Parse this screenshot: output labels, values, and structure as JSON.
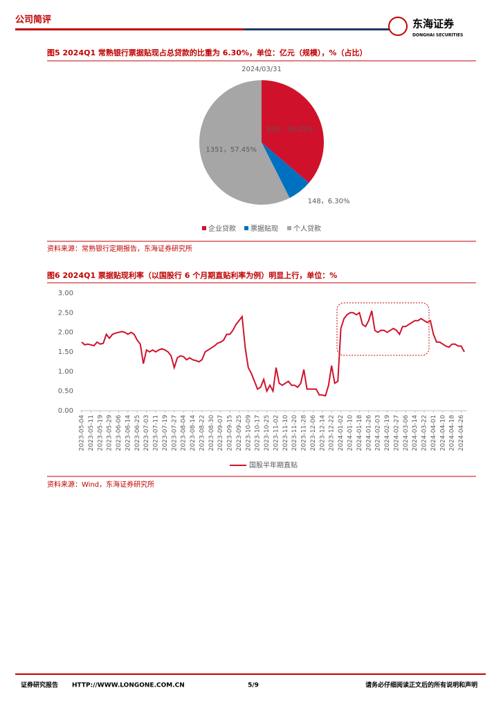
{
  "header": {
    "section": "公司简评",
    "logo_cn": "东海证券",
    "logo_en": "DONGHAI SECURITIES"
  },
  "footer": {
    "left": "证券研究报告",
    "url": "HTTP://WWW.LONGONE.COM.CN",
    "page": "5/9",
    "notice": "请务必仔细阅读正文后的所有说明和声明"
  },
  "chart_data": [
    {
      "type": "pie",
      "title": "图5  2024Q1 常熟银行票据贴现占总贷款的比重为 6.30%，单位：亿元（规模），%（占比）",
      "subtitle": "2024/03/31",
      "categories": [
        "企业贷款",
        "票据贴现",
        "个人贷款"
      ],
      "values": [
        853,
        148,
        1351
      ],
      "value_labels": [
        "853，36.25%",
        "148，6.30%",
        "1351，57.45%"
      ],
      "colors": [
        "#d0112b",
        "#0070c0",
        "#a6a6a6"
      ],
      "source": "资料来源：常熟银行定期报告，东海证券研究所"
    },
    {
      "type": "line",
      "title": "图6  2024Q1 票据贴现利率（以国股行 6 个月期直贴利率为例）明显上行，单位：%",
      "categories": [
        "2023-05-04",
        null,
        null,
        "2023-05-11",
        null,
        null,
        "2023-05-19",
        null,
        null,
        "2023-05-29",
        null,
        null,
        "2023-06-06",
        null,
        null,
        "2023-06-14",
        null,
        null,
        "2023-06-25",
        null,
        null,
        "2023-07-03",
        null,
        null,
        "2023-07-11",
        null,
        null,
        "2023-07-19",
        null,
        null,
        "2023-07-27",
        null,
        null,
        "2023-08-04",
        null,
        null,
        "2023-08-14",
        null,
        null,
        "2023-08-22",
        null,
        null,
        "2023-08-30",
        null,
        null,
        "2023-09-07",
        null,
        null,
        "2023-09-15",
        null,
        null,
        "2023-09-25",
        null,
        null,
        "2023-10-09",
        null,
        null,
        "2023-10-17",
        null,
        null,
        "2023-10-25",
        null,
        null,
        "2023-11-02",
        null,
        null,
        "2023-11-10",
        null,
        null,
        "2023-11-20",
        null,
        null,
        "2023-11-28",
        null,
        null,
        "2023-12-06",
        null,
        null,
        "2023-12-14",
        null,
        null,
        "2023-12-22",
        null,
        null,
        "2024-01-02",
        null,
        null,
        "2024-01-10",
        null,
        null,
        "2024-01-18",
        null,
        null,
        "2024-01-26",
        null,
        null,
        "2024-02-03",
        null,
        null,
        "2024-02-19",
        null,
        null,
        "2024-02-27",
        null,
        null,
        "2024-03-06",
        null,
        null,
        "2024-03-14",
        null,
        null,
        "2024-03-22",
        null,
        null,
        "2024-04-01",
        null,
        null,
        "2024-04-10",
        null,
        null,
        "2024-04-18",
        null,
        null,
        "2024-04-26",
        null
      ],
      "series": [
        {
          "name": "国股半年期直贴",
          "color": "#d0112b",
          "values": [
            1.75,
            1.68,
            1.7,
            1.68,
            1.66,
            1.75,
            1.7,
            1.72,
            1.95,
            1.85,
            1.95,
            1.98,
            2.0,
            2.02,
            2.0,
            1.95,
            2.0,
            1.95,
            1.8,
            1.7,
            1.2,
            1.55,
            1.5,
            1.55,
            1.5,
            1.55,
            1.58,
            1.55,
            1.5,
            1.4,
            1.1,
            1.35,
            1.4,
            1.38,
            1.3,
            1.35,
            1.3,
            1.28,
            1.25,
            1.3,
            1.5,
            1.55,
            1.6,
            1.65,
            1.72,
            1.75,
            1.8,
            1.95,
            1.95,
            2.05,
            2.2,
            2.3,
            2.4,
            1.6,
            1.1,
            0.95,
            0.75,
            0.55,
            0.6,
            0.8,
            0.5,
            0.65,
            0.5,
            1.1,
            0.7,
            0.65,
            0.7,
            0.75,
            0.65,
            0.65,
            0.6,
            0.7,
            1.05,
            0.55,
            0.55,
            0.55,
            0.55,
            0.4,
            0.4,
            0.38,
            0.65,
            1.15,
            0.7,
            0.75,
            2.1,
            2.35,
            2.45,
            2.5,
            2.5,
            2.45,
            2.5,
            2.2,
            2.15,
            2.3,
            2.55,
            2.05,
            2.0,
            2.05,
            2.05,
            2.0,
            2.05,
            2.1,
            2.05,
            1.95,
            2.15,
            2.15,
            2.2,
            2.25,
            2.3,
            2.3,
            2.35,
            2.3,
            2.25,
            2.3,
            1.95,
            1.75,
            1.75,
            1.7,
            1.65,
            1.62,
            1.7,
            1.7,
            1.65,
            1.65,
            1.5
          ]
        }
      ],
      "ylim": [
        0,
        3
      ],
      "yticks": [
        {
          "value": 0,
          "label": "0.00"
        },
        {
          "value": 0.5,
          "label": "0.50"
        },
        {
          "value": 1,
          "label": "1.00"
        },
        {
          "value": 1.5,
          "label": "1.50"
        },
        {
          "value": 2,
          "label": "2.00"
        },
        {
          "value": 2.5,
          "label": "2.50"
        },
        {
          "value": 3,
          "label": "3.00"
        }
      ],
      "grid": false,
      "source": "资料来源：Wind，东海证券研究所"
    }
  ]
}
